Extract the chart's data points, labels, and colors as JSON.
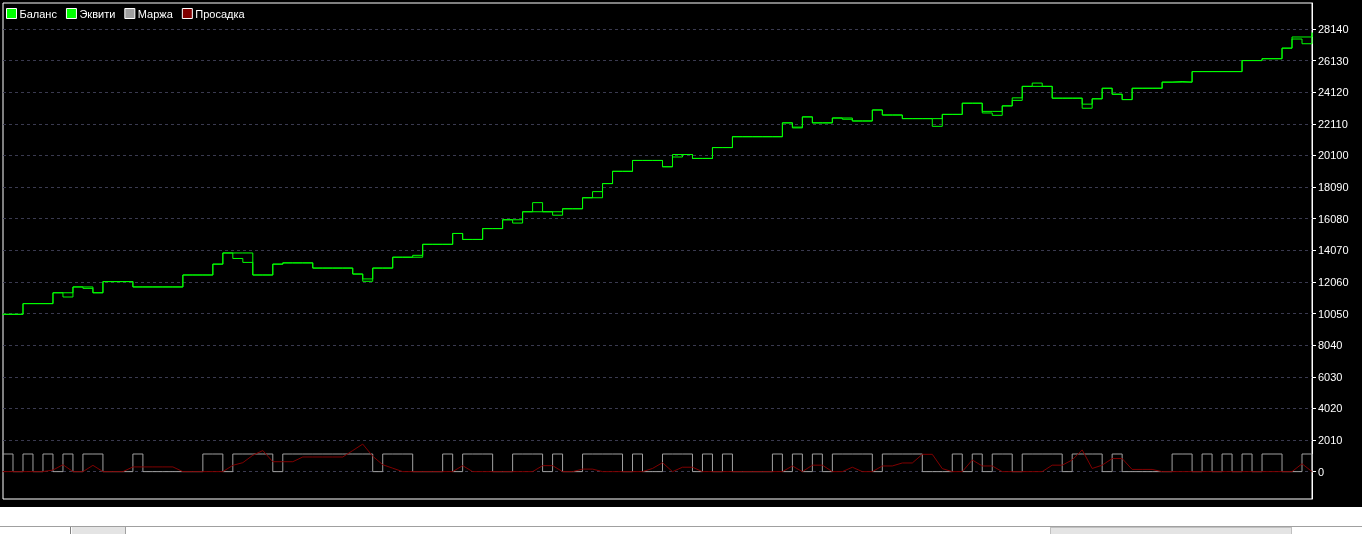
{
  "chart_data": {
    "type": "step",
    "categories": [
      null,
      null,
      null,
      null,
      null,
      null,
      null,
      null,
      null,
      null,
      null,
      null,
      null,
      null,
      null,
      null,
      null,
      null,
      null,
      null,
      null,
      null,
      null,
      null,
      null,
      null,
      null,
      null,
      null,
      null,
      null,
      null,
      null,
      null,
      null,
      null,
      null,
      null,
      null,
      null,
      null,
      null,
      null,
      null,
      null,
      null,
      null,
      null,
      null,
      null,
      null,
      null,
      null,
      null,
      null,
      null,
      null,
      null,
      null,
      null,
      null,
      null,
      null,
      null,
      null,
      null,
      null,
      null,
      null,
      null,
      null,
      null,
      null,
      null,
      null,
      null,
      null,
      null,
      null,
      null,
      null,
      null,
      null,
      null,
      null,
      null,
      null,
      null,
      null,
      null,
      null,
      null,
      null,
      null,
      null,
      null,
      null,
      null,
      null,
      null,
      null,
      null,
      null,
      null,
      null,
      null,
      null,
      null,
      null,
      null,
      null,
      null,
      null,
      null,
      null,
      null,
      null,
      null,
      null,
      null,
      null,
      null,
      null,
      null,
      null,
      null,
      null,
      null,
      null,
      null,
      null,
      null
    ],
    "series": [
      {
        "name": "Баланс",
        "color": "#00ff00",
        "values": [
          10000,
          10000,
          10680,
          10680,
          10680,
          11370,
          11370,
          11740,
          11740,
          11370,
          12080,
          12080,
          12080,
          11740,
          11740,
          11740,
          11740,
          11740,
          12500,
          12500,
          12500,
          13190,
          13900,
          13900,
          13900,
          12500,
          12500,
          13190,
          13270,
          13270,
          13270,
          12940,
          12940,
          12940,
          12940,
          12560,
          12250,
          12940,
          12940,
          13630,
          13630,
          13630,
          14450,
          14450,
          14450,
          15140,
          14760,
          14760,
          15450,
          15450,
          16010,
          16010,
          16520,
          16520,
          16520,
          16520,
          16710,
          16710,
          17410,
          17410,
          18310,
          19090,
          19090,
          19780,
          19780,
          19780,
          19380,
          20160,
          20160,
          19910,
          19910,
          20600,
          20600,
          21290,
          21290,
          21290,
          21290,
          21290,
          22170,
          21850,
          22550,
          22170,
          22170,
          22480,
          22480,
          22290,
          22290,
          22990,
          22670,
          22670,
          22440,
          22440,
          22440,
          22440,
          22710,
          22710,
          23420,
          23420,
          22900,
          22900,
          23250,
          23760,
          24490,
          24490,
          24490,
          23740,
          23740,
          23740,
          23360,
          23700,
          24370,
          23990,
          23650,
          24370,
          24370,
          24370,
          24760,
          24760,
          24760,
          25430,
          25430,
          25430,
          25430,
          25430,
          26130,
          26130,
          26250,
          26250,
          26920,
          27630,
          27630,
          27880
        ]
      },
      {
        "name": "Эквити",
        "color": "#00ff00",
        "values": [
          10000,
          10000,
          10680,
          10680,
          10680,
          11370,
          11100,
          11740,
          11650,
          11370,
          12080,
          12080,
          12080,
          11740,
          11740,
          11740,
          11740,
          11740,
          12500,
          12500,
          12500,
          13190,
          13900,
          13550,
          13300,
          12500,
          12500,
          13190,
          13270,
          13270,
          13270,
          12940,
          12940,
          12940,
          12940,
          12560,
          12100,
          12940,
          12940,
          13630,
          13630,
          13750,
          14450,
          14450,
          14450,
          15140,
          14760,
          14760,
          15450,
          15450,
          16010,
          15800,
          16520,
          17100,
          16520,
          16300,
          16710,
          16710,
          17410,
          17800,
          18310,
          19090,
          19090,
          19780,
          19780,
          19780,
          19380,
          20000,
          20160,
          19910,
          19910,
          20600,
          20600,
          21290,
          21290,
          21290,
          21290,
          21290,
          22170,
          21900,
          22550,
          22170,
          22170,
          22480,
          22400,
          22290,
          22290,
          22990,
          22670,
          22670,
          22440,
          22440,
          22440,
          21950,
          22710,
          22710,
          23420,
          23420,
          22800,
          22650,
          23250,
          23600,
          24490,
          24700,
          24490,
          23740,
          23740,
          23740,
          23100,
          23700,
          24370,
          23990,
          23650,
          24370,
          24370,
          24370,
          24760,
          24800,
          24760,
          25430,
          25430,
          25430,
          25430,
          25430,
          26130,
          26130,
          26250,
          26250,
          26920,
          27500,
          27200,
          27880
        ]
      },
      {
        "name": "Маржа",
        "color": "#a0a0a0",
        "values": [
          1120,
          0,
          1120,
          0,
          1120,
          0,
          1120,
          0,
          1120,
          1120,
          0,
          0,
          0,
          1120,
          0,
          0,
          0,
          0,
          0,
          0,
          1120,
          1120,
          0,
          1120,
          1120,
          1120,
          1120,
          0,
          1120,
          1120,
          1120,
          1120,
          1120,
          1120,
          1120,
          1120,
          1120,
          0,
          1120,
          1120,
          1120,
          0,
          0,
          0,
          1120,
          0,
          1120,
          1120,
          1120,
          0,
          0,
          1120,
          1120,
          1120,
          0,
          1120,
          0,
          0,
          1120,
          1120,
          1120,
          1120,
          0,
          1120,
          0,
          0,
          1120,
          1120,
          1120,
          0,
          1120,
          0,
          1120,
          0,
          0,
          0,
          0,
          1120,
          0,
          1120,
          0,
          1120,
          0,
          1120,
          1120,
          1120,
          1120,
          0,
          1120,
          1120,
          1120,
          1120,
          0,
          0,
          0,
          1120,
          0,
          1120,
          0,
          1120,
          1120,
          0,
          1120,
          1120,
          1120,
          1120,
          0,
          1120,
          1120,
          1120,
          0,
          1120,
          0,
          0,
          0,
          0,
          0,
          1120,
          1120,
          0,
          1120,
          0,
          1120,
          0,
          1120,
          0,
          1120,
          1120,
          0,
          0,
          1120,
          0
        ]
      },
      {
        "name": "Просадка",
        "type": "line",
        "color": "#800000",
        "values": [
          0,
          0,
          0,
          0,
          0,
          100,
          440,
          0,
          0,
          400,
          0,
          0,
          0,
          300,
          300,
          300,
          300,
          300,
          0,
          0,
          0,
          0,
          0,
          400,
          570,
          1040,
          1340,
          630,
          630,
          630,
          930,
          930,
          930,
          930,
          930,
          1340,
          1750,
          980,
          440,
          220,
          0,
          0,
          0,
          0,
          0,
          0,
          380,
          0,
          0,
          0,
          0,
          0,
          0,
          0,
          380,
          380,
          0,
          0,
          160,
          160,
          0,
          0,
          0,
          0,
          0,
          200,
          570,
          0,
          280,
          280,
          0,
          0,
          0,
          0,
          0,
          0,
          0,
          0,
          0,
          360,
          0,
          410,
          410,
          0,
          0,
          280,
          0,
          0,
          360,
          360,
          550,
          550,
          1100,
          1100,
          190,
          0,
          0,
          740,
          360,
          360,
          0,
          0,
          0,
          0,
          0,
          410,
          410,
          740,
          1380,
          200,
          410,
          830,
          830,
          140,
          140,
          140,
          0,
          0,
          0,
          0,
          0,
          0,
          0,
          0,
          0,
          0,
          0,
          0,
          0,
          0,
          500,
          0
        ]
      }
    ],
    "ylim": [
      -1740,
      29790
    ],
    "yticks": [
      0,
      2010,
      4020,
      6030,
      8040,
      10050,
      12060,
      14070,
      16080,
      18090,
      20100,
      22110,
      24120,
      26130,
      28140
    ],
    "grid": "y",
    "legend": "top left"
  }
}
